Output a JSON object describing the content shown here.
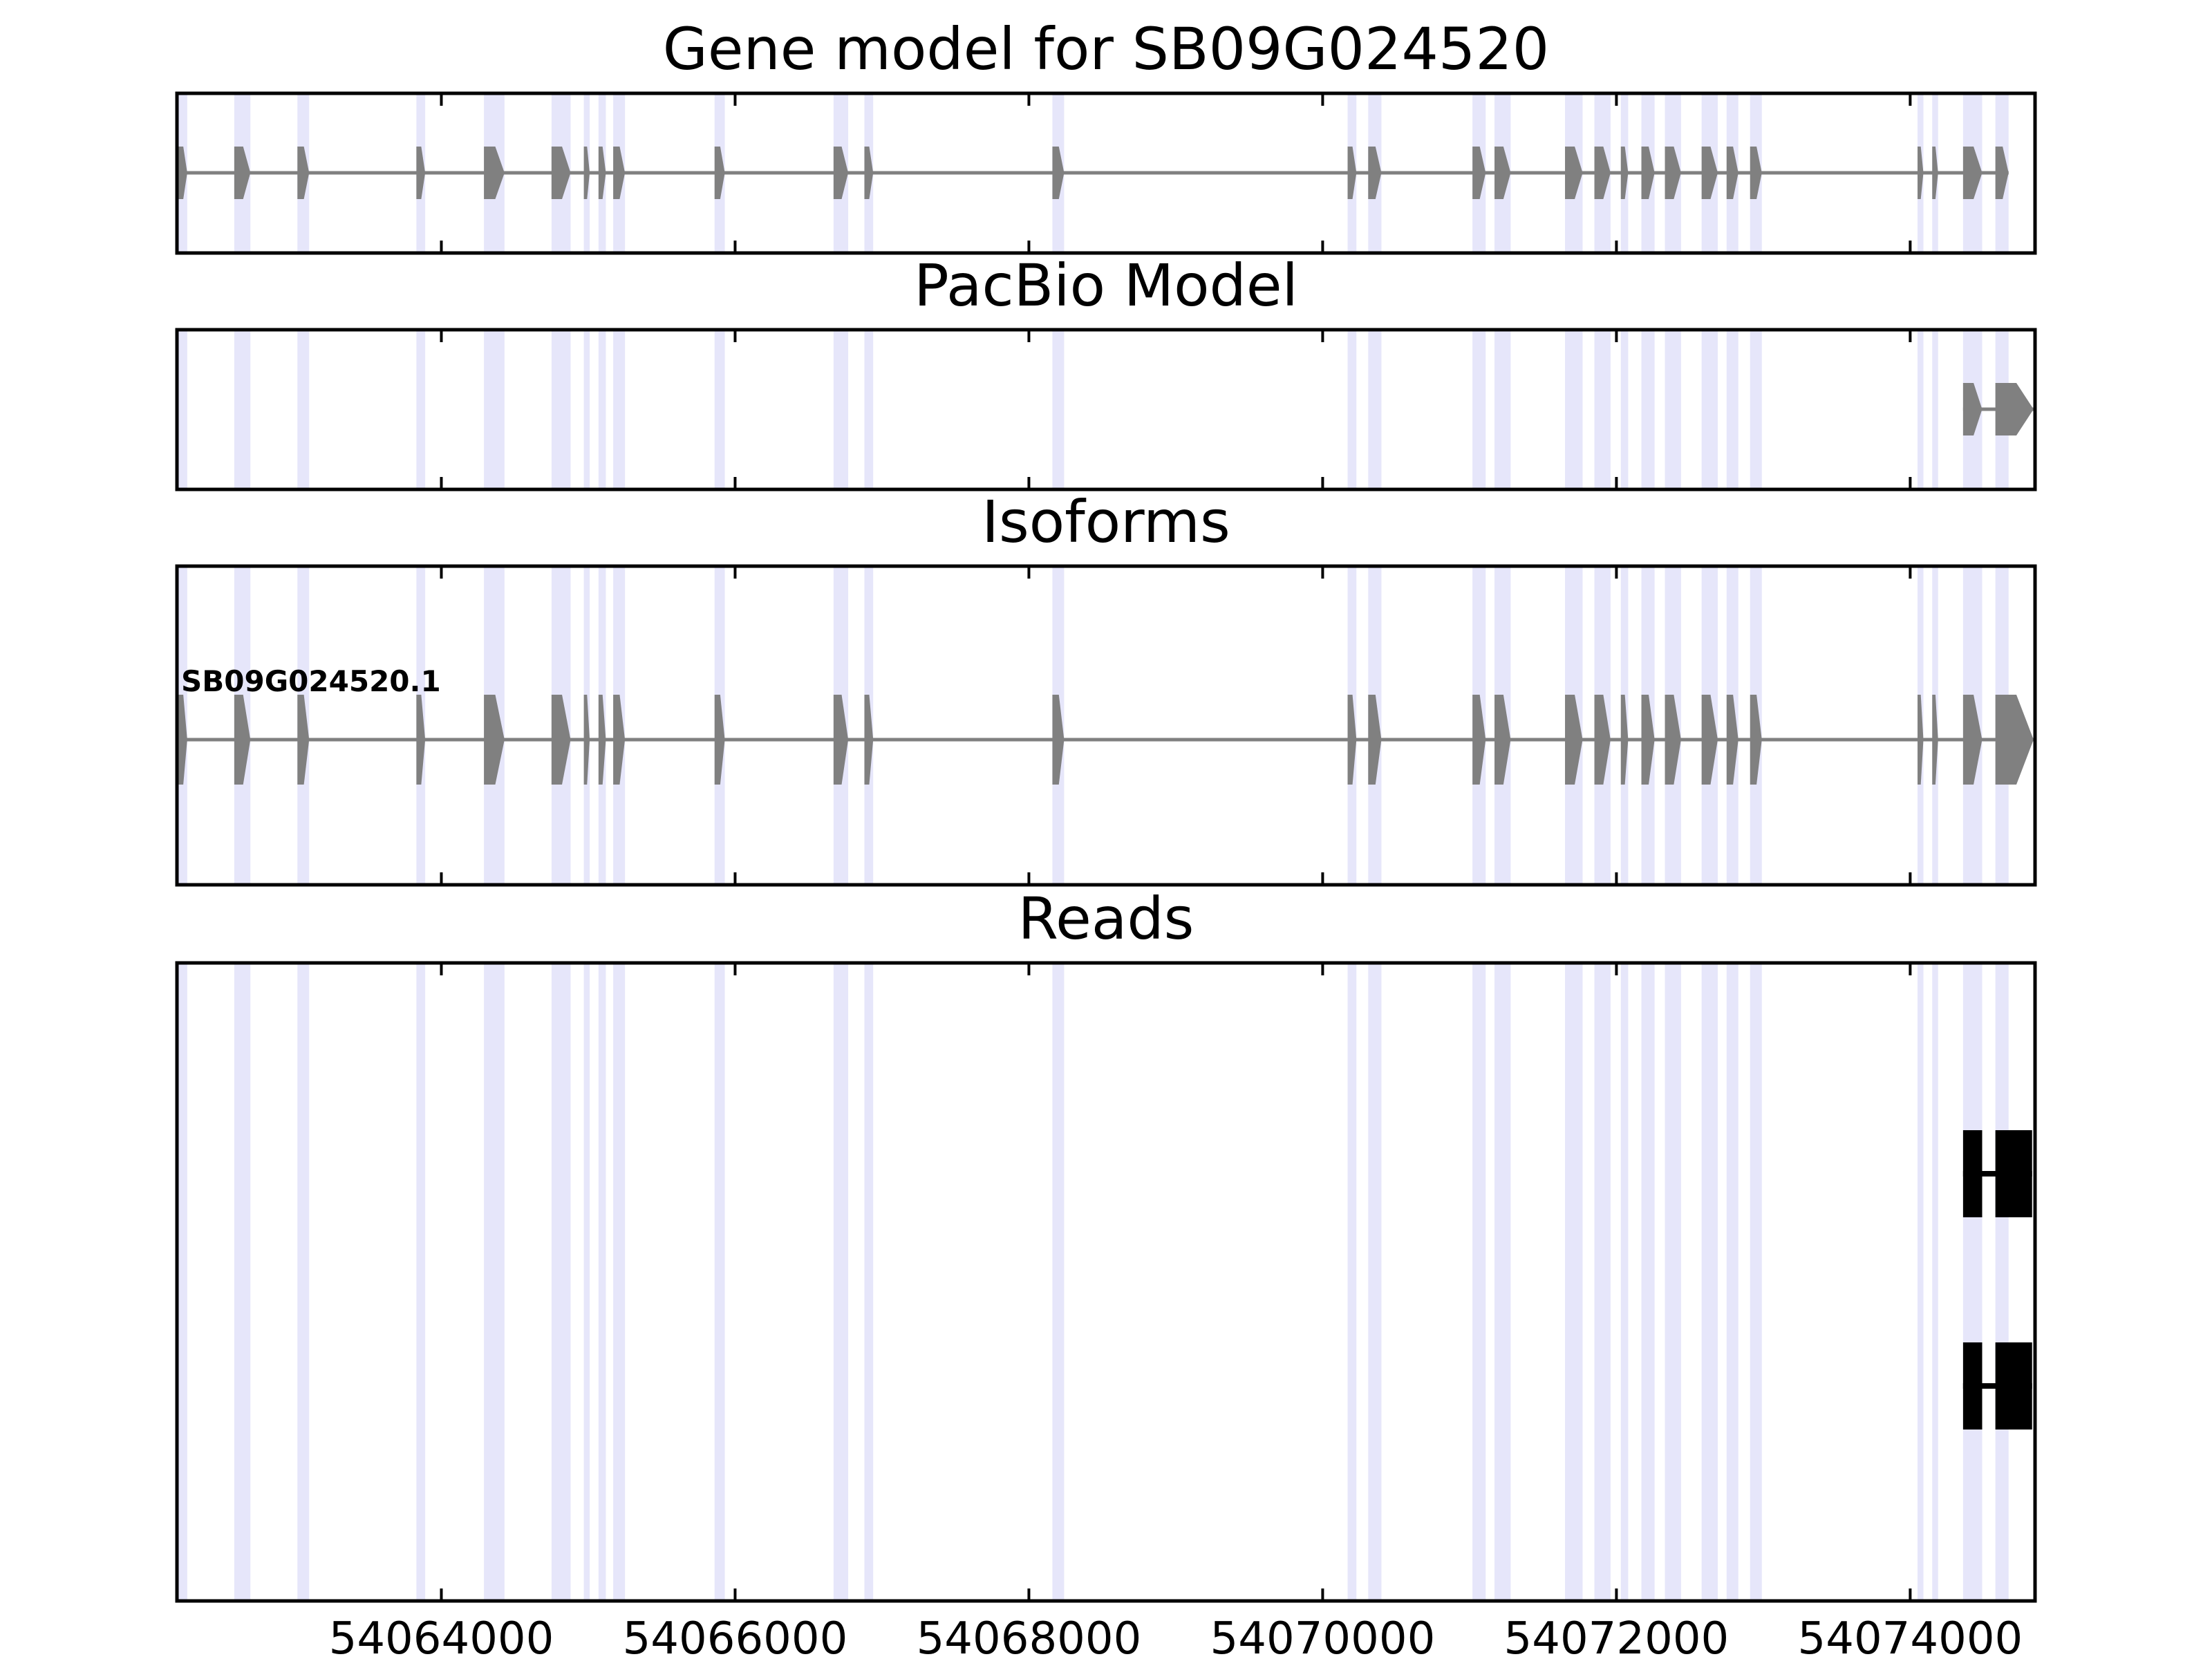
{
  "chart_data": {
    "type": "gene-track",
    "x_axis": {
      "range": [
        54062200,
        54074850
      ],
      "ticks": [
        54064000,
        54066000,
        54068000,
        54070000,
        54072000,
        54074000
      ],
      "tick_labels": [
        "54064000",
        "54066000",
        "54068000",
        "54070000",
        "54072000",
        "54074000"
      ]
    },
    "exon_highlights": [
      [
        54062210,
        54062270
      ],
      [
        54062590,
        54062700
      ],
      [
        54063020,
        54063100
      ],
      [
        54063830,
        54063890
      ],
      [
        54064290,
        54064430
      ],
      [
        54064750,
        54064880
      ],
      [
        54064970,
        54065010
      ],
      [
        54065070,
        54065120
      ],
      [
        54065170,
        54065250
      ],
      [
        54065860,
        54065930
      ],
      [
        54066670,
        54066770
      ],
      [
        54066880,
        54066940
      ],
      [
        54068160,
        54068240
      ],
      [
        54070170,
        54070230
      ],
      [
        54070310,
        54070400
      ],
      [
        54071020,
        54071110
      ],
      [
        54071170,
        54071280
      ],
      [
        54071650,
        54071770
      ],
      [
        54071850,
        54071960
      ],
      [
        54072030,
        54072080
      ],
      [
        54072170,
        54072260
      ],
      [
        54072330,
        54072440
      ],
      [
        54072580,
        54072690
      ],
      [
        54072750,
        54072830
      ],
      [
        54072910,
        54072990
      ],
      [
        54074050,
        54074090
      ],
      [
        54074150,
        54074190
      ],
      [
        54074360,
        54074490
      ],
      [
        54074580,
        54074670
      ]
    ],
    "panels": [
      {
        "title": "Gene model for SB09G024520",
        "tracks": [
          {
            "color": "#808080",
            "label": "",
            "exons": [
              [
                54062210,
                54062270
              ],
              [
                54062590,
                54062700
              ],
              [
                54063020,
                54063100
              ],
              [
                54063830,
                54063890
              ],
              [
                54064290,
                54064430
              ],
              [
                54064750,
                54064880
              ],
              [
                54064970,
                54065010
              ],
              [
                54065070,
                54065120
              ],
              [
                54065170,
                54065250
              ],
              [
                54065860,
                54065930
              ],
              [
                54066670,
                54066770
              ],
              [
                54066880,
                54066940
              ],
              [
                54068160,
                54068240
              ],
              [
                54070170,
                54070230
              ],
              [
                54070310,
                54070400
              ],
              [
                54071020,
                54071110
              ],
              [
                54071170,
                54071280
              ],
              [
                54071650,
                54071770
              ],
              [
                54071850,
                54071960
              ],
              [
                54072030,
                54072080
              ],
              [
                54072170,
                54072260
              ],
              [
                54072330,
                54072440
              ],
              [
                54072580,
                54072690
              ],
              [
                54072750,
                54072830
              ],
              [
                54072910,
                54072990
              ],
              [
                54074050,
                54074090
              ],
              [
                54074150,
                54074190
              ],
              [
                54074360,
                54074490
              ],
              [
                54074580,
                54074670
              ]
            ]
          }
        ]
      },
      {
        "title": "PacBio Model",
        "tracks": [
          {
            "color": "#808080",
            "label": "",
            "exons": [
              [
                54074360,
                54074490
              ],
              [
                54074580,
                54074840
              ]
            ]
          }
        ]
      },
      {
        "title": "Isoforms",
        "tracks": [
          {
            "color": "#808080",
            "label": "SB09G024520.1",
            "exons": [
              [
                54062210,
                54062270
              ],
              [
                54062590,
                54062700
              ],
              [
                54063020,
                54063100
              ],
              [
                54063830,
                54063890
              ],
              [
                54064290,
                54064430
              ],
              [
                54064750,
                54064880
              ],
              [
                54064970,
                54065010
              ],
              [
                54065070,
                54065120
              ],
              [
                54065170,
                54065250
              ],
              [
                54065860,
                54065930
              ],
              [
                54066670,
                54066770
              ],
              [
                54066880,
                54066940
              ],
              [
                54068160,
                54068240
              ],
              [
                54070170,
                54070230
              ],
              [
                54070310,
                54070400
              ],
              [
                54071020,
                54071110
              ],
              [
                54071170,
                54071280
              ],
              [
                54071650,
                54071770
              ],
              [
                54071850,
                54071960
              ],
              [
                54072030,
                54072080
              ],
              [
                54072170,
                54072260
              ],
              [
                54072330,
                54072440
              ],
              [
                54072580,
                54072690
              ],
              [
                54072750,
                54072830
              ],
              [
                54072910,
                54072990
              ],
              [
                54074050,
                54074090
              ],
              [
                54074150,
                54074190
              ],
              [
                54074360,
                54074490
              ],
              [
                54074580,
                54074840
              ]
            ]
          }
        ]
      },
      {
        "title": "Reads",
        "tracks": [
          {
            "color": "#000000",
            "label": "",
            "exons": [
              [
                54074360,
                54074490
              ],
              [
                54074580,
                54074830
              ]
            ]
          },
          {
            "color": "#000000",
            "label": "",
            "exons": [
              [
                54074360,
                54074490
              ],
              [
                54074580,
                54074830
              ]
            ]
          }
        ]
      }
    ],
    "colors": {
      "highlight": "#e6e6fa",
      "model": "#808080",
      "read": "#000000",
      "intron_line": "#808080",
      "axes": "#000000"
    },
    "grid": false,
    "legend": "none"
  }
}
